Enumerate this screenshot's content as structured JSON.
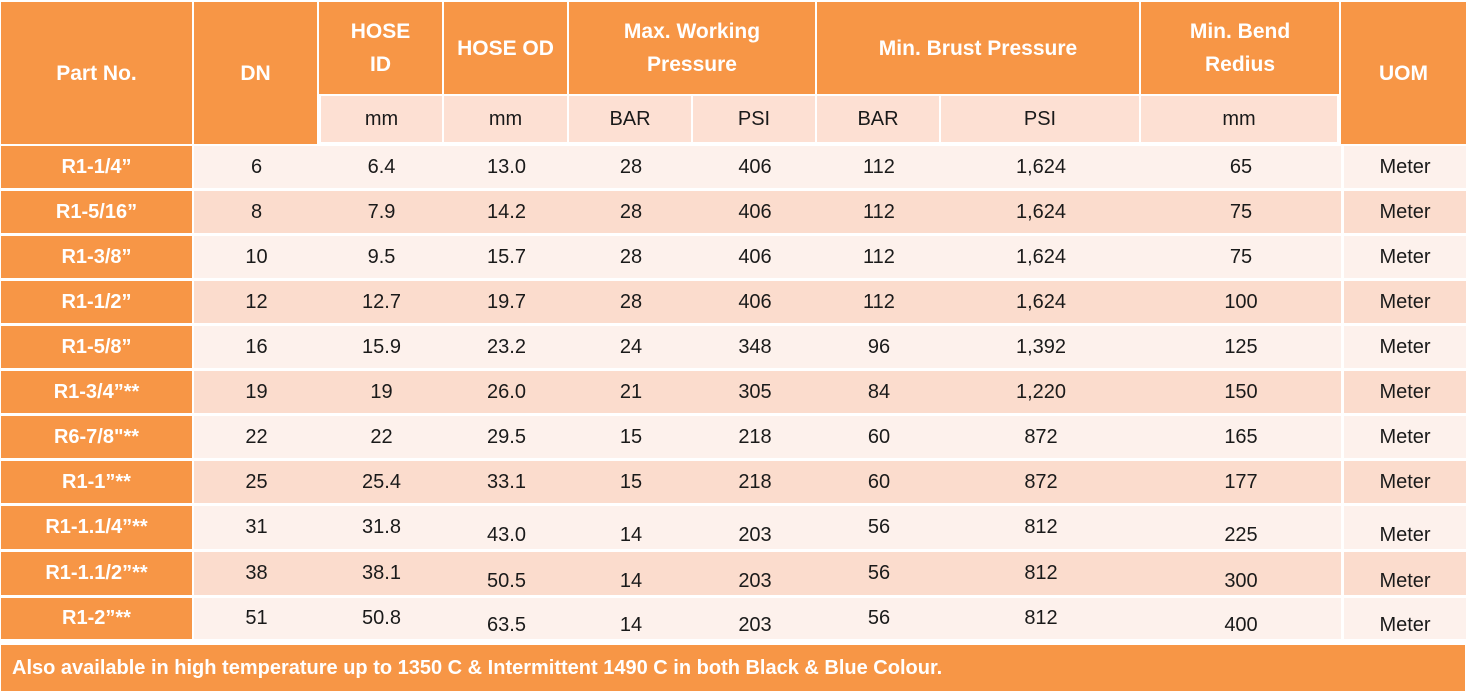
{
  "headers": {
    "part_no": "Part No.",
    "dn": "DN",
    "hose_id": "HOSE ID",
    "hose_od": "HOSE OD",
    "max_working_pressure": "Max. Working Pressure",
    "min_burst_pressure": "Min. Brust Pressure",
    "min_bend_radius": "Min. Bend Redius",
    "uom": "UOM"
  },
  "units": [
    "mm",
    "mm",
    "BAR",
    "PSI",
    "BAR",
    "PSI",
    "mm"
  ],
  "rows": [
    {
      "part_no": "R1-1/4”",
      "dn": "6",
      "hose_id": "6.4",
      "hose_od": "13.0",
      "wp_bar": "28",
      "wp_psi": "406",
      "bp_bar": "112",
      "bp_psi": "1,624",
      "bend": "65",
      "uom": "Meter"
    },
    {
      "part_no": "R1-5/16”",
      "dn": "8",
      "hose_id": "7.9",
      "hose_od": "14.2",
      "wp_bar": "28",
      "wp_psi": "406",
      "bp_bar": "112",
      "bp_psi": "1,624",
      "bend": "75",
      "uom": "Meter"
    },
    {
      "part_no": "R1-3/8”",
      "dn": "10",
      "hose_id": "9.5",
      "hose_od": "15.7",
      "wp_bar": "28",
      "wp_psi": "406",
      "bp_bar": "112",
      "bp_psi": "1,624",
      "bend": "75",
      "uom": "Meter"
    },
    {
      "part_no": "R1-1/2”",
      "dn": "12",
      "hose_id": "12.7",
      "hose_od": "19.7",
      "wp_bar": "28",
      "wp_psi": "406",
      "bp_bar": "112",
      "bp_psi": "1,624",
      "bend": "100",
      "uom": "Meter"
    },
    {
      "part_no": "R1-5/8”",
      "dn": "16",
      "hose_id": "15.9",
      "hose_od": "23.2",
      "wp_bar": "24",
      "wp_psi": "348",
      "bp_bar": "96",
      "bp_psi": "1,392",
      "bend": "125",
      "uom": "Meter"
    },
    {
      "part_no": "R1-3/4”**",
      "dn": "19",
      "hose_id": "19",
      "hose_od": "26.0",
      "wp_bar": "21",
      "wp_psi": "305",
      "bp_bar": "84",
      "bp_psi": "1,220",
      "bend": "150",
      "uom": "Meter"
    },
    {
      "part_no": "R6-7/8\"**",
      "dn": "22",
      "hose_id": "22",
      "hose_od": "29.5",
      "wp_bar": "15",
      "wp_psi": "218",
      "bp_bar": "60",
      "bp_psi": "872",
      "bend": "165",
      "uom": "Meter"
    },
    {
      "part_no": "R1-1”**",
      "dn": "25",
      "hose_id": "25.4",
      "hose_od": "33.1",
      "wp_bar": "15",
      "wp_psi": "218",
      "bp_bar": "60",
      "bp_psi": "872",
      "bend": "177",
      "uom": "Meter"
    },
    {
      "part_no": "R1-1.1/4”**",
      "dn": "31",
      "hose_id": "31.8",
      "hose_od": "43.0",
      "wp_bar": "14",
      "wp_psi": "203",
      "bp_bar": "56",
      "bp_psi": "812",
      "bend": "225",
      "uom": "Meter"
    },
    {
      "part_no": "R1-1.1/2”**",
      "dn": "38",
      "hose_id": "38.1",
      "hose_od": "50.5",
      "wp_bar": "14",
      "wp_psi": "203",
      "bp_bar": "56",
      "bp_psi": "812",
      "bend": "300",
      "uom": "Meter"
    },
    {
      "part_no": "R1-2”**",
      "dn": "51",
      "hose_id": "50.8",
      "hose_od": "63.5",
      "wp_bar": "14",
      "wp_psi": "203",
      "bp_bar": "56",
      "bp_psi": "812",
      "bend": "400",
      "uom": "Meter"
    }
  ],
  "footer": "Also available in high temperature up to 1350 C & Intermittent 1490 C in both Black & Blue Colour.",
  "colors": {
    "header_orange": "#f79646",
    "unit_row": "#fde0d3",
    "row_light": "#fdf1ec",
    "row_dark": "#fbdccd",
    "white_text": "#ffffff"
  }
}
